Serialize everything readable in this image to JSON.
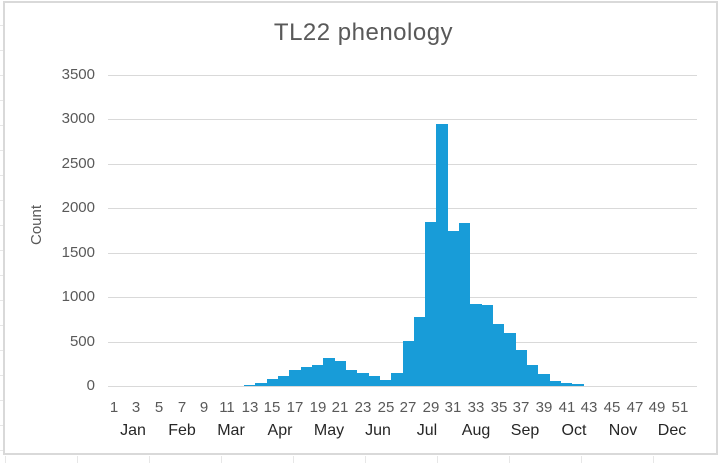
{
  "chart": {
    "title": "TL22 phenology",
    "y_axis": {
      "label": "Count",
      "ticks": [
        0,
        500,
        1000,
        1500,
        2000,
        2500,
        3000,
        3500
      ],
      "max": 3500
    },
    "x_axis": {
      "week_ticks": [
        "1",
        "3",
        "5",
        "7",
        "9",
        "11",
        "13",
        "15",
        "17",
        "19",
        "21",
        "23",
        "25",
        "27",
        "29",
        "31",
        "33",
        "35",
        "37",
        "39",
        "41",
        "43",
        "45",
        "47",
        "49",
        "51"
      ],
      "months": [
        "Jan",
        "Feb",
        "Mar",
        "Apr",
        "May",
        "Jun",
        "Jul",
        "Aug",
        "Sep",
        "Oct",
        "Nov",
        "Dec"
      ]
    },
    "colors": {
      "bar": "#189cd8",
      "gridline": "#d9d9d9",
      "axis_text": "#595959",
      "month_text": "#262626",
      "title_text": "#595959",
      "frame_border": "#d9d9d9"
    }
  },
  "chart_data": {
    "type": "bar",
    "title": "TL22 phenology",
    "xlabel": "",
    "ylabel": "Count",
    "ylim": [
      0,
      3500
    ],
    "grid": true,
    "legend": false,
    "bar_gap": 0,
    "categories": [
      1,
      2,
      3,
      4,
      5,
      6,
      7,
      8,
      9,
      10,
      11,
      12,
      13,
      14,
      15,
      16,
      17,
      18,
      19,
      20,
      21,
      22,
      23,
      24,
      25,
      26,
      27,
      28,
      29,
      30,
      31,
      32,
      33,
      34,
      35,
      36,
      37,
      38,
      39,
      40,
      41,
      42,
      43,
      44,
      45,
      46,
      47,
      48,
      49,
      50,
      51,
      52
    ],
    "values": [
      0,
      0,
      0,
      0,
      0,
      0,
      0,
      0,
      0,
      0,
      0,
      0,
      15,
      30,
      80,
      115,
      185,
      210,
      235,
      310,
      285,
      180,
      150,
      115,
      70,
      150,
      510,
      780,
      1850,
      2950,
      1740,
      1840,
      925,
      915,
      700,
      600,
      410,
      240,
      140,
      60,
      35,
      25,
      0,
      0,
      0,
      0,
      0,
      0,
      0,
      0,
      0,
      0
    ],
    "x_tick_labels": [
      "1",
      "3",
      "5",
      "7",
      "9",
      "11",
      "13",
      "15",
      "17",
      "19",
      "21",
      "23",
      "25",
      "27",
      "29",
      "31",
      "33",
      "35",
      "37",
      "39",
      "41",
      "43",
      "45",
      "47",
      "49",
      "51"
    ],
    "month_group_labels": [
      "Jan",
      "Feb",
      "Mar",
      "Apr",
      "May",
      "Jun",
      "Jul",
      "Aug",
      "Sep",
      "Oct",
      "Nov",
      "Dec"
    ]
  }
}
